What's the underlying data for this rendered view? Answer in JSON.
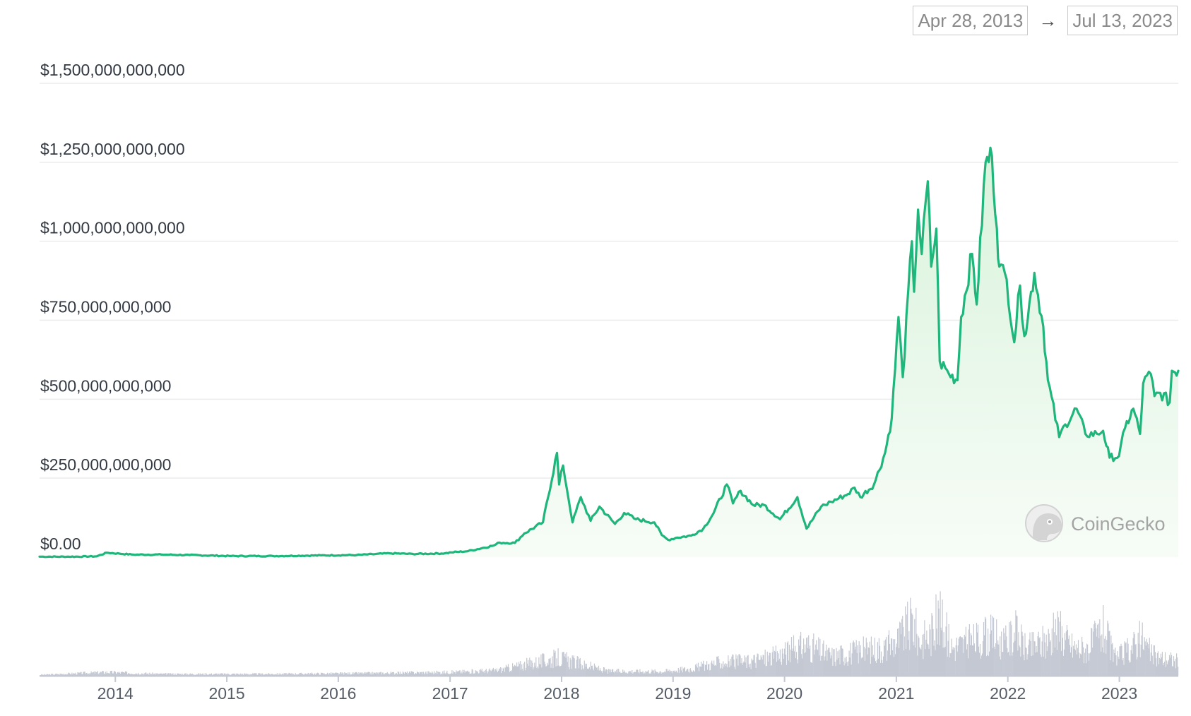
{
  "range": {
    "start_date": "Apr 28, 2013",
    "arrow": "→",
    "end_date": "Jul 13, 2023"
  },
  "watermark": {
    "text": "CoinGecko",
    "icon": "gecko-logo-icon"
  },
  "colors": {
    "line": "#1fb67c",
    "area_top": "#d9f3dc",
    "area_bottom": "#f7fcf7",
    "volume": "#c4c8d2",
    "grid": "#ebebeb",
    "axis": "#c4c8d2"
  },
  "chart_data": {
    "type": "line",
    "title": "",
    "xlabel": "",
    "ylabel": "",
    "xlim": [
      "2013-04-28",
      "2023-07-13"
    ],
    "ylim": [
      0,
      1500000000000
    ],
    "y_ticks": [
      {
        "value": 0,
        "label": "$0.00"
      },
      {
        "value": 250000000000,
        "label": "$250,000,000,000"
      },
      {
        "value": 500000000000,
        "label": "$500,000,000,000"
      },
      {
        "value": 750000000000,
        "label": "$750,000,000,000"
      },
      {
        "value": 1000000000000,
        "label": "$1,000,000,000,000"
      },
      {
        "value": 1250000000000,
        "label": "$1,250,000,000,000"
      },
      {
        "value": 1500000000000,
        "label": "$1,500,000,000,000"
      }
    ],
    "x_ticks": [
      {
        "date": "2014-01-01",
        "label": "2014"
      },
      {
        "date": "2015-01-01",
        "label": "2015"
      },
      {
        "date": "2016-01-01",
        "label": "2016"
      },
      {
        "date": "2017-01-01",
        "label": "2017"
      },
      {
        "date": "2018-01-01",
        "label": "2018"
      },
      {
        "date": "2019-01-01",
        "label": "2019"
      },
      {
        "date": "2020-01-01",
        "label": "2020"
      },
      {
        "date": "2021-01-01",
        "label": "2021"
      },
      {
        "date": "2022-01-01",
        "label": "2022"
      },
      {
        "date": "2023-01-01",
        "label": "2023"
      }
    ],
    "grid": true,
    "legend": "none",
    "series": [
      {
        "kind": "line-area",
        "x": [
          "2013-04-28",
          "2013-08-01",
          "2013-11-01",
          "2013-12-04",
          "2014-01-15",
          "2014-03-01",
          "2014-06-01",
          "2014-09-01",
          "2015-01-15",
          "2015-06-01",
          "2015-11-05",
          "2016-03-01",
          "2016-06-17",
          "2016-09-01",
          "2016-12-15",
          "2017-01-05",
          "2017-03-01",
          "2017-05-25",
          "2017-06-12",
          "2017-08-01",
          "2017-09-01",
          "2017-11-01",
          "2017-12-17",
          "2017-12-24",
          "2018-01-06",
          "2018-02-06",
          "2018-03-05",
          "2018-04-06",
          "2018-05-05",
          "2018-06-25",
          "2018-07-25",
          "2018-09-01",
          "2018-11-01",
          "2018-11-25",
          "2018-12-15",
          "2019-01-15",
          "2019-03-01",
          "2019-04-10",
          "2019-05-14",
          "2019-06-26",
          "2019-07-16",
          "2019-08-10",
          "2019-09-20",
          "2019-10-26",
          "2019-12-17",
          "2020-02-12",
          "2020-03-13",
          "2020-04-30",
          "2020-06-01",
          "2020-07-27",
          "2020-08-17",
          "2020-09-05",
          "2020-10-20",
          "2020-11-25",
          "2020-12-17",
          "2021-01-08",
          "2021-01-22",
          "2021-02-21",
          "2021-02-28",
          "2021-03-13",
          "2021-03-25",
          "2021-04-14",
          "2021-04-25",
          "2021-05-12",
          "2021-05-23",
          "2021-06-22",
          "2021-07-20",
          "2021-08-01",
          "2021-09-06",
          "2021-09-21",
          "2021-10-20",
          "2021-11-10",
          "2021-11-26",
          "2021-12-04",
          "2021-12-28",
          "2022-01-22",
          "2022-02-10",
          "2022-02-24",
          "2022-03-29",
          "2022-04-27",
          "2022-05-12",
          "2022-06-18",
          "2022-07-08",
          "2022-08-14",
          "2022-09-12",
          "2022-10-20",
          "2022-11-09",
          "2022-11-30",
          "2022-12-31",
          "2023-01-20",
          "2023-02-16",
          "2023-03-10",
          "2023-03-20",
          "2023-04-14",
          "2023-04-26",
          "2023-05-15",
          "2023-06-15",
          "2023-06-22",
          "2023-07-13"
        ],
        "y": [
          1500000000,
          1300000000,
          2500000000,
          14000000000,
          11000000000,
          8000000000,
          8000000000,
          6500000000,
          3500000000,
          3500000000,
          5500000000,
          6500000000,
          12000000000,
          10000000000,
          12000000000,
          15000000000,
          19000000000,
          37000000000,
          46000000000,
          45000000000,
          75000000000,
          110000000000,
          330000000000,
          230000000000,
          290000000000,
          110000000000,
          190000000000,
          115000000000,
          160000000000,
          105000000000,
          140000000000,
          120000000000,
          110000000000,
          70000000000,
          55000000000,
          62000000000,
          68000000000,
          90000000000,
          140000000000,
          230000000000,
          170000000000,
          210000000000,
          165000000000,
          165000000000,
          120000000000,
          190000000000,
          90000000000,
          160000000000,
          175000000000,
          200000000000,
          220000000000,
          190000000000,
          230000000000,
          330000000000,
          440000000000,
          760000000000,
          570000000000,
          1000000000000,
          840000000000,
          1100000000000,
          960000000000,
          1190000000000,
          920000000000,
          1040000000000,
          620000000000,
          580000000000,
          560000000000,
          760000000000,
          960000000000,
          800000000000,
          1250000000000,
          1270000000000,
          1040000000000,
          920000000000,
          880000000000,
          680000000000,
          860000000000,
          700000000000,
          900000000000,
          730000000000,
          560000000000,
          380000000000,
          420000000000,
          470000000000,
          390000000000,
          390000000000,
          400000000000,
          315000000000,
          320000000000,
          410000000000,
          470000000000,
          390000000000,
          550000000000,
          580000000000,
          510000000000,
          520000000000,
          490000000000,
          590000000000,
          590000000000
        ]
      },
      {
        "kind": "volume",
        "x": [
          "2013-04-28",
          "2013-12-01",
          "2014-06-01",
          "2015-06-01",
          "2016-06-01",
          "2017-01-01",
          "2017-06-01",
          "2017-12-20",
          "2018-06-01",
          "2018-12-01",
          "2019-03-01",
          "2019-06-01",
          "2019-09-01",
          "2019-12-01",
          "2020-03-12",
          "2020-06-01",
          "2020-09-01",
          "2020-12-01",
          "2021-01-05",
          "2021-02-22",
          "2021-03-15",
          "2021-04-20",
          "2021-05-19",
          "2021-07-01",
          "2021-09-01",
          "2021-11-15",
          "2021-12-15",
          "2022-01-24",
          "2022-03-01",
          "2022-05-10",
          "2022-06-13",
          "2022-08-01",
          "2022-09-15",
          "2022-11-09",
          "2022-12-15",
          "2023-01-15",
          "2023-03-15",
          "2023-04-15",
          "2023-05-15",
          "2023-07-13"
        ],
        "values": [
          0.01,
          0.04,
          0.02,
          0.02,
          0.03,
          0.04,
          0.06,
          0.2,
          0.05,
          0.05,
          0.08,
          0.15,
          0.16,
          0.22,
          0.35,
          0.22,
          0.28,
          0.32,
          0.4,
          0.62,
          0.4,
          0.45,
          0.66,
          0.32,
          0.38,
          0.46,
          0.34,
          0.48,
          0.3,
          0.4,
          0.5,
          0.32,
          0.3,
          0.52,
          0.2,
          0.25,
          0.42,
          0.24,
          0.2,
          0.17
        ]
      }
    ]
  }
}
